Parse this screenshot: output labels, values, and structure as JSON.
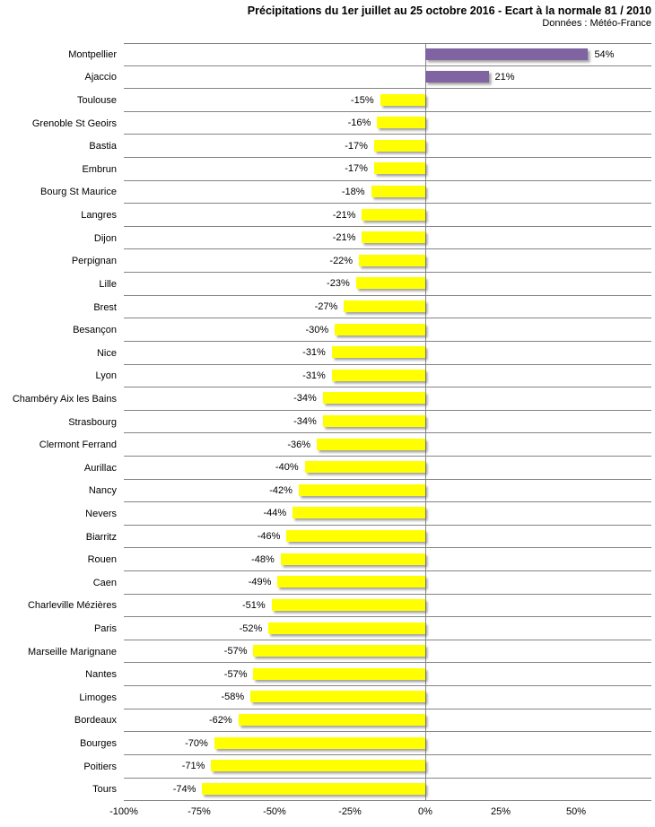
{
  "header": {
    "title": "Précipitations du 1er juillet au 25 octobre 2016 - Ecart à la normale 81 / 2010",
    "subtitle": "Données : Météo-France"
  },
  "chart_data": {
    "type": "bar",
    "orientation": "horizontal",
    "title": "Précipitations du 1er juillet au 25 octobre 2016 - Ecart à la normale 81 / 2010",
    "subtitle": "Données : Météo-France",
    "unit": "%",
    "categories": [
      "Montpellier",
      "Ajaccio",
      "Toulouse",
      "Grenoble St Geoirs",
      "Bastia",
      "Embrun",
      "Bourg St Maurice",
      "Langres",
      "Dijon",
      "Perpignan",
      "Lille",
      "Brest",
      "Besançon",
      "Nice",
      "Lyon",
      "Chambéry Aix les Bains",
      "Strasbourg",
      "Clermont Ferrand",
      "Aurillac",
      "Nancy",
      "Nevers",
      "Biarritz",
      "Rouen",
      "Caen",
      "Charleville Mézières",
      "Paris",
      "Marseille Marignane",
      "Nantes",
      "Limoges",
      "Bordeaux",
      "Bourges",
      "Poitiers",
      "Tours"
    ],
    "values": [
      54,
      21,
      -15,
      -16,
      -17,
      -17,
      -18,
      -21,
      -21,
      -22,
      -23,
      -27,
      -30,
      -31,
      -31,
      -34,
      -34,
      -36,
      -40,
      -42,
      -44,
      -46,
      -48,
      -49,
      -51,
      -52,
      -57,
      -57,
      -58,
      -62,
      -70,
      -71,
      -74
    ],
    "value_labels": [
      "54%",
      "21%",
      "-15%",
      "-16%",
      "-17%",
      "-17%",
      "-18%",
      "-21%",
      "-21%",
      "-22%",
      "-23%",
      "-27%",
      "-30%",
      "-31%",
      "-31%",
      "-34%",
      "-34%",
      "-36%",
      "-40%",
      "-42%",
      "-44%",
      "-46%",
      "-48%",
      "-49%",
      "-51%",
      "-52%",
      "-57%",
      "-57%",
      "-58%",
      "-62%",
      "-70%",
      "-71%",
      "-74%"
    ],
    "xlim": [
      -100,
      75
    ],
    "xtick_values": [
      -100,
      -75,
      -50,
      -25,
      0,
      25,
      50
    ],
    "xtick_labels": [
      "-100%",
      "-75%",
      "-50%",
      "-25%",
      "0%",
      "25%",
      "50%"
    ],
    "grid": "row-separators-horizontal",
    "legend_position": "none",
    "colors": {
      "positive_bar": "#8064A2",
      "negative_bar": "#FFFF00",
      "gridline": "#848484",
      "text": "#000000",
      "background": "#FFFFFF"
    }
  }
}
